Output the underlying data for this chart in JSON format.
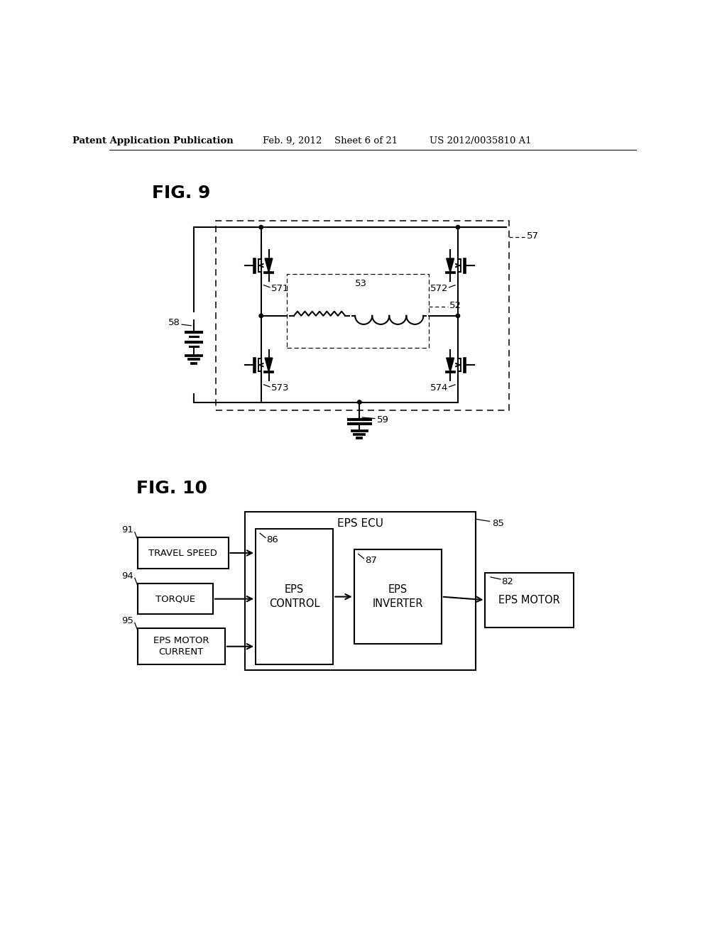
{
  "bg_color": "#ffffff",
  "header_text": "Patent Application Publication",
  "header_date": "Feb. 9, 2012",
  "header_sheet": "Sheet 6 of 21",
  "header_patent": "US 2012/0035810 A1",
  "fig9_label": "FIG. 9",
  "fig10_label": "FIG. 10",
  "label_57": "57",
  "label_52": "52",
  "label_53": "53",
  "label_58": "58",
  "label_59": "59",
  "label_571": "571",
  "label_572": "572",
  "label_573": "573",
  "label_574": "574",
  "label_85": "85",
  "label_82": "82",
  "label_86": "86",
  "label_87": "87",
  "label_91": "91",
  "label_94": "94",
  "label_95": "95",
  "eps_ecu": "EPS ECU",
  "eps_control": "EPS\nCONTROL",
  "eps_inverter": "EPS\nINVERTER",
  "eps_motor": "EPS MOTOR",
  "travel_speed": "TRAVEL SPEED",
  "torque": "TORQUE",
  "eps_motor_current": "EPS MOTOR\nCURRENT",
  "line_color": "#000000",
  "line_width": 1.5
}
